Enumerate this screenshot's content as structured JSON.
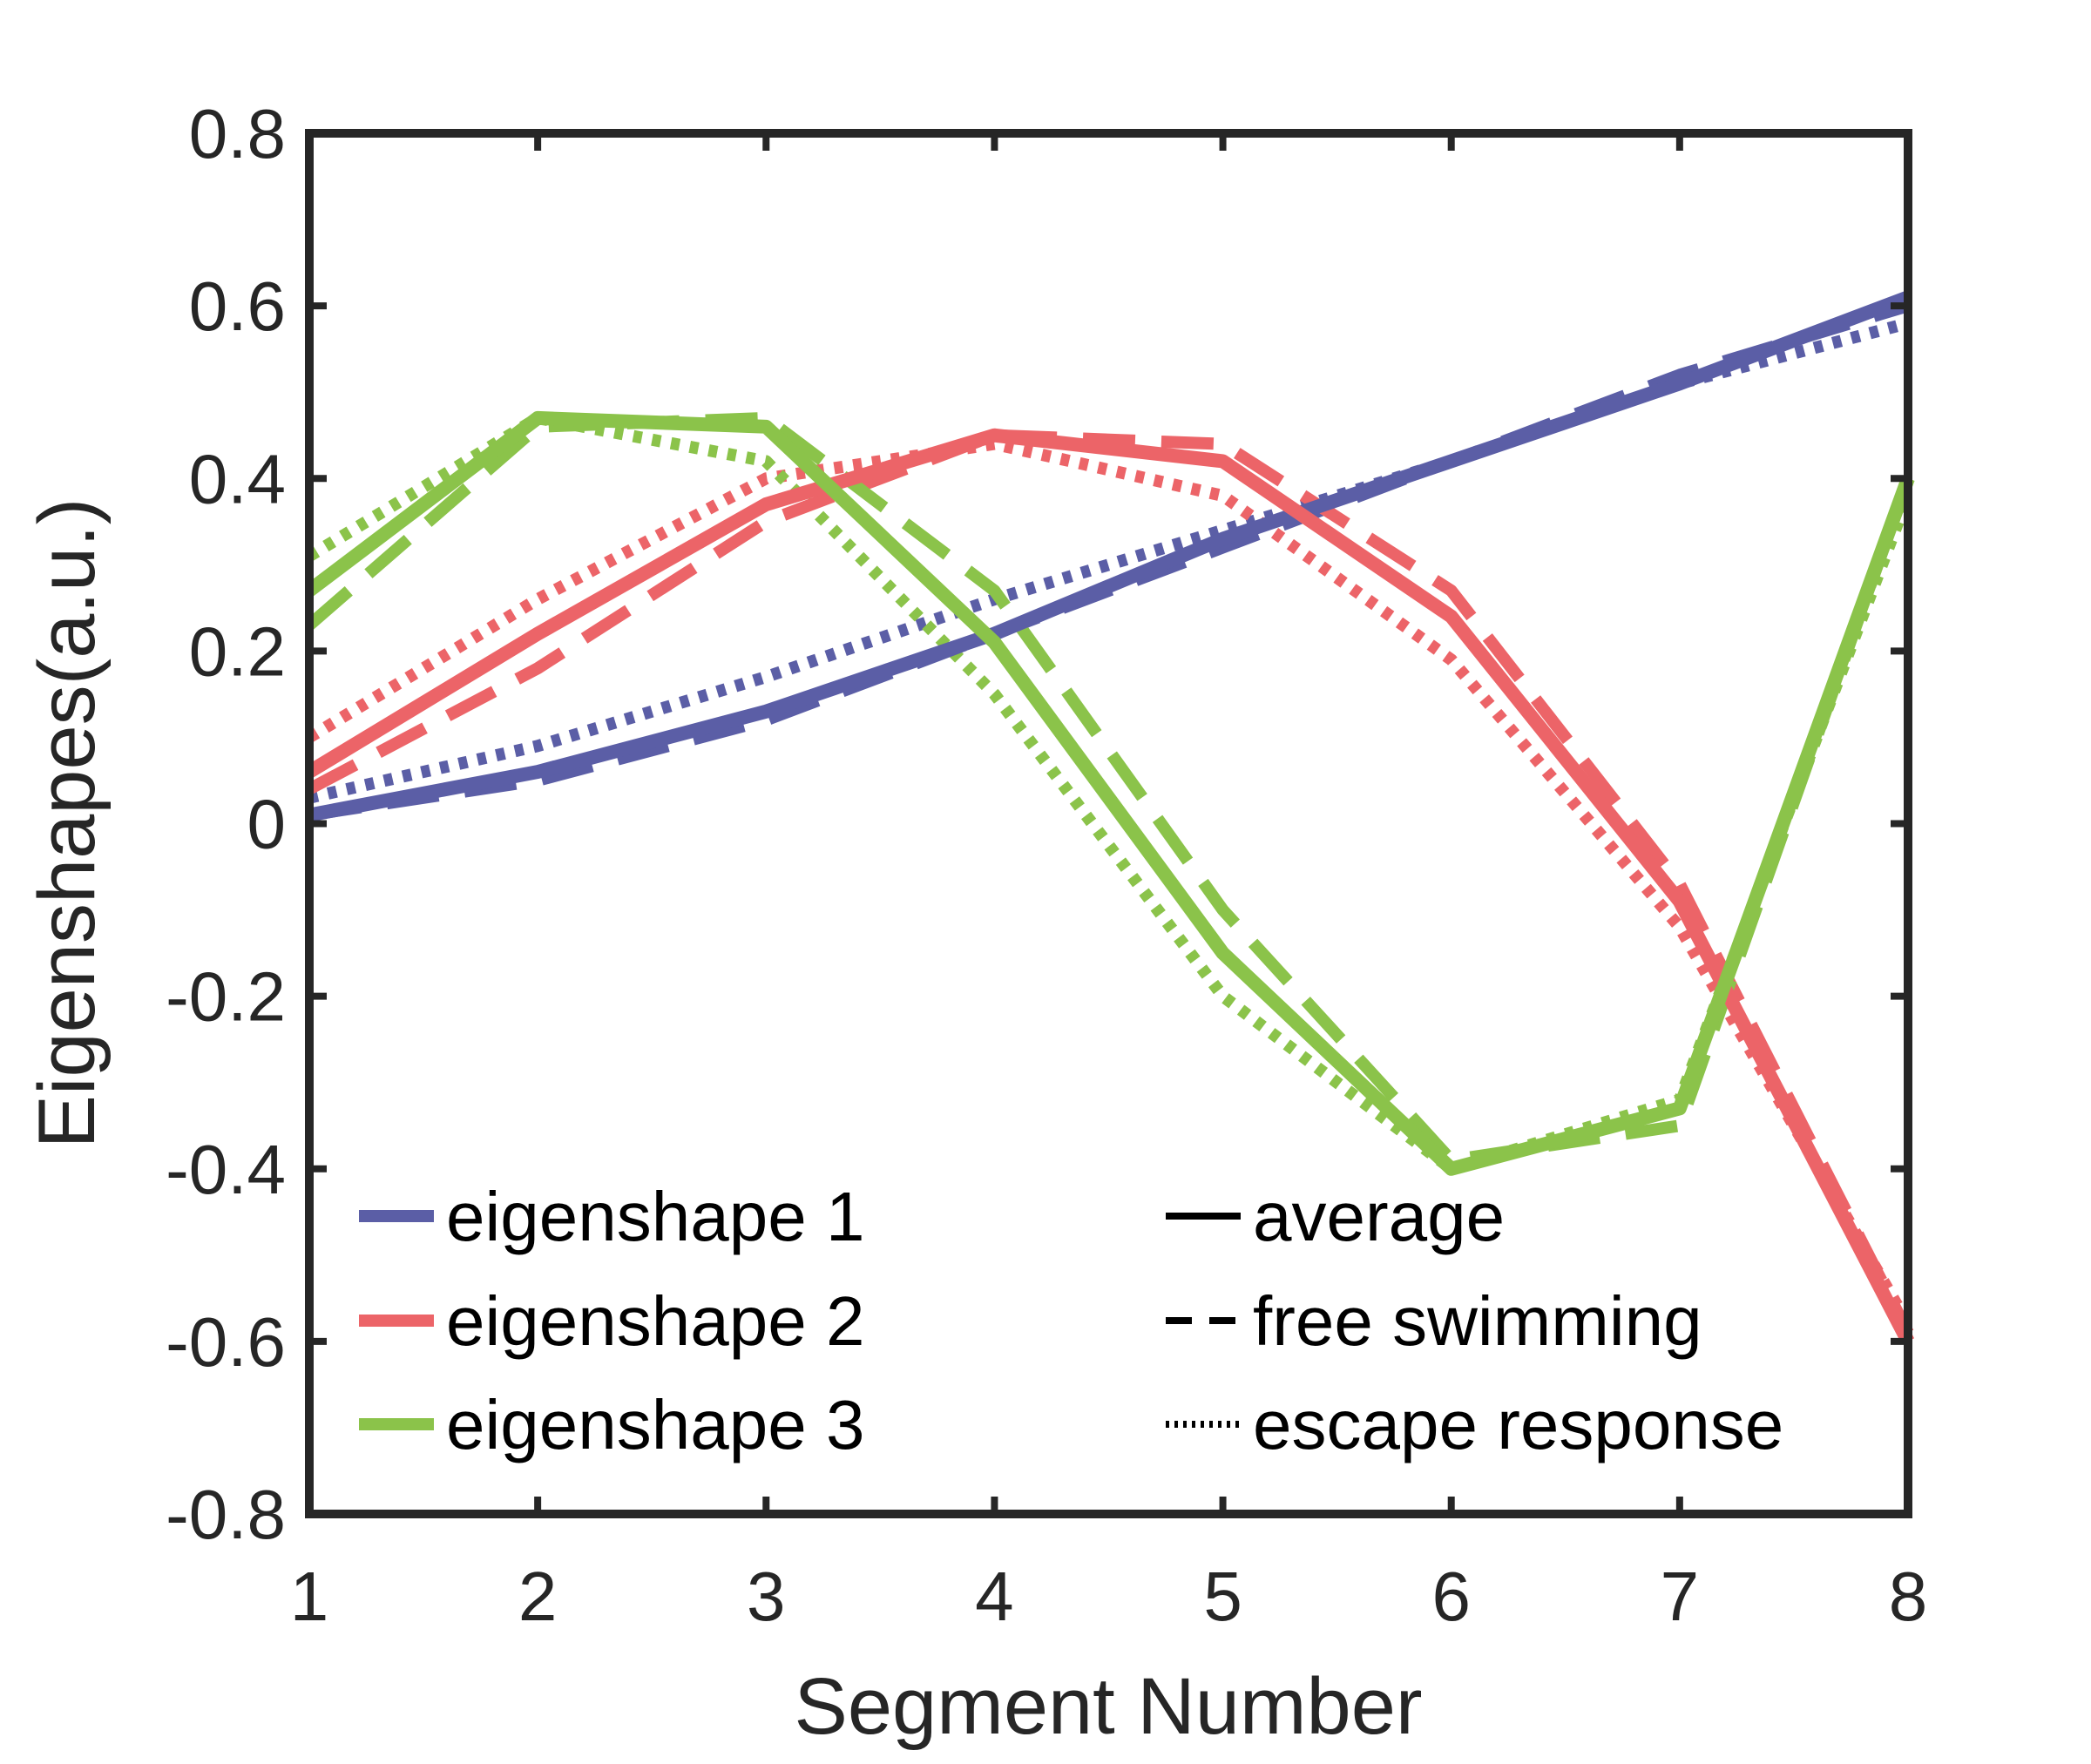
{
  "chart_data": {
    "type": "line",
    "xlabel": "Segment Number",
    "ylabel": "Eigenshapes(a.u.)",
    "xlim": [
      1,
      8
    ],
    "ylim": [
      -0.8,
      0.8
    ],
    "xticks": [
      "1",
      "2",
      "3",
      "4",
      "5",
      "6",
      "7",
      "8"
    ],
    "yticks": [
      "0.8",
      "0.6",
      "0.4",
      "0.2",
      "0",
      "-0.2",
      "-0.4",
      "-0.6",
      "-0.8"
    ],
    "x": [
      1,
      2,
      3,
      4,
      5,
      6,
      7,
      8
    ],
    "grid": false,
    "legend_position": "bottom-left",
    "series": [
      {
        "name": "eigenshape 1",
        "variant": "average",
        "color": "#5b5ea6",
        "style": "solid",
        "values": [
          0.01,
          0.06,
          0.13,
          0.22,
          0.33,
          0.42,
          0.51,
          0.61
        ]
      },
      {
        "name": "eigenshape 1",
        "variant": "free swimming",
        "color": "#5b5ea6",
        "style": "dashed",
        "values": [
          0.01,
          0.05,
          0.12,
          0.22,
          0.32,
          0.42,
          0.52,
          0.6
        ]
      },
      {
        "name": "eigenshape 1",
        "variant": "escape response",
        "color": "#5b5ea6",
        "style": "dotted",
        "values": [
          0.03,
          0.09,
          0.17,
          0.26,
          0.34,
          0.42,
          0.51,
          0.58
        ]
      },
      {
        "name": "eigenshape 2",
        "variant": "average",
        "color": "#ec6468",
        "style": "solid",
        "values": [
          0.06,
          0.22,
          0.37,
          0.45,
          0.42,
          0.24,
          -0.09,
          -0.6
        ]
      },
      {
        "name": "eigenshape 2",
        "variant": "free swimming",
        "color": "#ec6468",
        "style": "dashed",
        "values": [
          0.04,
          0.18,
          0.35,
          0.45,
          0.44,
          0.27,
          -0.07,
          -0.59
        ]
      },
      {
        "name": "eigenshape 2",
        "variant": "escape response",
        "color": "#ec6468",
        "style": "dotted",
        "values": [
          0.1,
          0.26,
          0.4,
          0.44,
          0.38,
          0.19,
          -0.12,
          -0.58
        ]
      },
      {
        "name": "eigenshape 3",
        "variant": "average",
        "color": "#8bc34a",
        "style": "solid",
        "values": [
          0.27,
          0.47,
          0.46,
          0.21,
          -0.15,
          -0.4,
          -0.33,
          0.4
        ]
      },
      {
        "name": "eigenshape 3",
        "variant": "free swimming",
        "color": "#8bc34a",
        "style": "dashed",
        "values": [
          0.23,
          0.46,
          0.47,
          0.27,
          -0.1,
          -0.39,
          -0.35,
          0.4
        ]
      },
      {
        "name": "eigenshape 3",
        "variant": "escape response",
        "color": "#8bc34a",
        "style": "dotted",
        "values": [
          0.31,
          0.47,
          0.42,
          0.15,
          -0.2,
          -0.4,
          -0.32,
          0.38
        ]
      }
    ],
    "legend": {
      "colors": [
        {
          "label": "eigenshape 1",
          "color": "#5b5ea6"
        },
        {
          "label": "eigenshape 2",
          "color": "#ec6468"
        },
        {
          "label": "eigenshape 3",
          "color": "#8bc34a"
        }
      ],
      "styles": [
        {
          "label": "average",
          "style": "solid"
        },
        {
          "label": "free swimming",
          "style": "dashed"
        },
        {
          "label": "escape response",
          "style": "dotted"
        }
      ]
    }
  }
}
